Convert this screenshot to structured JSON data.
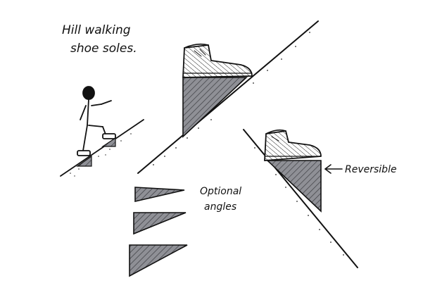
{
  "title": {
    "line1": "Hill walking",
    "line2": "shoe soles."
  },
  "labels": {
    "optional_line1": "Optional",
    "optional_line2": "angles",
    "reversible": "Reversible"
  },
  "colors": {
    "ink": "#111111",
    "wedge_fill": "#8f9096",
    "paper": "#ffffff"
  },
  "icons": [
    "walking-person-icon",
    "boot-icon",
    "arrow-left-icon"
  ]
}
